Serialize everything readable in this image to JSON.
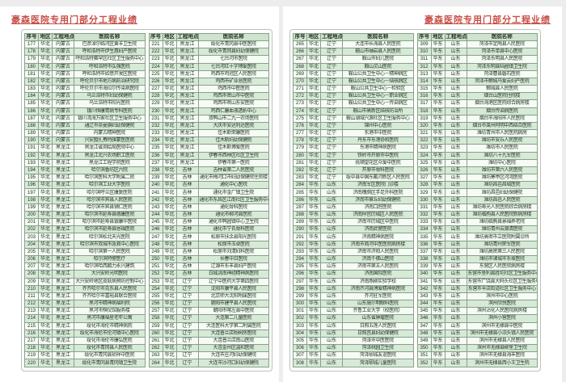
{
  "page_title": "豪森医院专用门部分工程业绩",
  "accent_color": "#c75048",
  "columns": [
    "序号",
    "地区",
    "工程地点",
    "医院名称"
  ],
  "left_page": {
    "table_a": {
      "rows": [
        [
          "177",
          "华北",
          "内蒙古",
          "巴彦淖尔临河区黄羊卫生院"
        ],
        [
          "178",
          "华北",
          "内蒙古",
          "呼和浩特市伊生惠妇产医院"
        ],
        [
          "179",
          "华北",
          "内蒙古",
          "呼和浩特赛罕区社区卫生服务中心"
        ],
        [
          "180",
          "华北",
          "内蒙古",
          "呼和浩特市弘强医院"
        ],
        [
          "181",
          "华北",
          "内蒙古",
          "呼和浩特市如意开发区医院"
        ],
        [
          "182",
          "华北",
          "内蒙古",
          "呼伦贝尔市地方病防治研究院"
        ],
        [
          "183",
          "华北",
          "内蒙古",
          "呼伦贝尔市海拉尔传染病医院"
        ],
        [
          "184",
          "华北",
          "内蒙古",
          "乌兰浩特市妇幼保健院"
        ],
        [
          "185",
          "华北",
          "内蒙古",
          "乌兰浩特市阳光医院"
        ],
        [
          "186",
          "华北",
          "内蒙古",
          "银川恒康胃病专科医院"
        ],
        [
          "187",
          "华北",
          "内蒙古",
          "银川湾海万家社区卫生服务中心"
        ],
        [
          "188",
          "华北",
          "内蒙古",
          "通辽市奈曼旗妇幼保健院"
        ],
        [
          "189",
          "华北",
          "内蒙古",
          "内蒙古精神医院"
        ],
        [
          "190",
          "华北",
          "内蒙古",
          "兴安盟扎赉特旗蒙医医院"
        ],
        [
          "191",
          "华北",
          "黑龙江",
          "黑龙江省测绘局医院中心"
        ],
        [
          "192",
          "华北",
          "黑龙江",
          "黑龙江北兴农场职工医院"
        ],
        [
          "193",
          "华北",
          "黑龙江",
          "黑龙江工程学院医院"
        ],
        [
          "194",
          "华北",
          "黑龙江",
          "哈尔滨香坊区六院"
        ],
        [
          "195",
          "华北",
          "黑龙江",
          "哈尔滨医科大学附属二院"
        ],
        [
          "196",
          "华北",
          "黑龙江",
          "哈尔滨工业大学医院"
        ],
        [
          "197",
          "华北",
          "黑龙江",
          "哈尔滨呼兰区康复医院"
        ],
        [
          "198",
          "华北",
          "黑龙江",
          "哈尔滨市宾县人民医院"
        ],
        [
          "199",
          "华北",
          "黑龙江",
          "哈尔滨市宾县铺仁医院"
        ],
        [
          "200",
          "华北",
          "黑龙江",
          "哈尔滨市延寿县德康医院"
        ],
        [
          "201",
          "华北",
          "黑龙江",
          "哈尔滨市延寿县银康华医院"
        ],
        [
          "202",
          "华北",
          "黑龙江",
          "哈尔滨市延寿县恩福医院"
        ],
        [
          "203",
          "华北",
          "黑龙江",
          "哈尔滨松北天光医院"
        ],
        [
          "204",
          "华北",
          "黑龙江",
          "哈尔滨市双城市急救中心医院"
        ],
        [
          "205",
          "华北",
          "黑龙江",
          "哈尔滨第一人民医院"
        ],
        [
          "206",
          "华北",
          "黑龙江",
          "哈尔滨特警医疗"
        ],
        [
          "207",
          "华北",
          "黑龙江",
          "哈尔滨哈西鹏力永兴建筑"
        ],
        [
          "208",
          "华北",
          "黑龙江",
          "大兴安岭光明医院"
        ],
        [
          "209",
          "华北",
          "黑龙江",
          "大兴安岭地区皮肤病预防控制中心"
        ],
        [
          "210",
          "华北",
          "黑龙江",
          "齐齐哈尔市克东县人民医院"
        ],
        [
          "211",
          "华北",
          "黑龙江",
          "齐齐哈尔市富裕县联合医院"
        ],
        [
          "212",
          "华北",
          "黑龙江",
          "黑河市精神病福利院"
        ],
        [
          "213",
          "华北",
          "黑龙江",
          "黑河市殡仪馆服务楼"
        ],
        [
          "214",
          "华北",
          "黑龙江",
          "黑河市康福星老年公寓"
        ],
        [
          "215",
          "华北",
          "黑龙江",
          "绥化市海伦市精神病院"
        ],
        [
          "216",
          "华北",
          "黑龙江",
          "绥化市海伦市伦河镇中心医院"
        ],
        [
          "217",
          "华北",
          "黑龙江",
          "绥化市海伦市康弘医院"
        ],
        [
          "218",
          "华北",
          "黑龙江",
          "绥化市青冈县人民医院"
        ],
        [
          "219",
          "华北",
          "黑龙江",
          "绥化市青冈县祯祥中医院"
        ],
        [
          "220",
          "华北",
          "黑龙江",
          "绥化市青冈县青冈镇卫生院"
        ]
      ]
    },
    "table_b": {
      "rows": [
        [
          "221",
          "华北",
          "黑龙江",
          "绥化市青冈县中医医院"
        ],
        [
          "222",
          "华北",
          "黑龙江",
          "绥化市青冈县妇幼保健院"
        ],
        [
          "223",
          "华北",
          "黑龙江",
          "七台河市医院"
        ],
        [
          "224",
          "华北",
          "黑龙江",
          "七台河红十字博爱医院"
        ],
        [
          "225",
          "华北",
          "黑龙江",
          "鸡西市鸡冠区人民医院"
        ],
        [
          "226",
          "华北",
          "黑龙江",
          "鸡西市矿业总医院"
        ],
        [
          "227",
          "华北",
          "黑龙江",
          "鸡西市中医医院"
        ],
        [
          "228",
          "华北",
          "黑龙江",
          "鸡西市密山市中医院"
        ],
        [
          "229",
          "华北",
          "黑龙江",
          "鸡西市密山东安医院"
        ],
        [
          "230",
          "华北",
          "黑龙江",
          "鸡西仁康血液透析中心"
        ],
        [
          "231",
          "华北",
          "黑龙江",
          "双鸭山市二九一农场医院"
        ],
        [
          "232",
          "华北",
          "黑龙江",
          "大庆市安达利达医院"
        ],
        [
          "233",
          "华北",
          "黑龙江",
          "佳木斯荣康医院"
        ],
        [
          "234",
          "华北",
          "黑龙江",
          "佳木斯妇幼保健院"
        ],
        [
          "235",
          "华北",
          "黑龙江",
          "佳木斯博爱医院"
        ],
        [
          "236",
          "华北",
          "黑龙江",
          "伊春市西林区社区卫生院"
        ],
        [
          "237",
          "华北",
          "黑龙江",
          "伊春市第一医院"
        ],
        [
          "238",
          "华北",
          "吉林",
          "吉林省第二人民医院"
        ],
        [
          "239",
          "华北",
          "吉林",
          "通化市梅河口市妇幼保健院住院楼"
        ],
        [
          "240",
          "华北",
          "吉林",
          "通化中心医院"
        ],
        [
          "241",
          "华北",
          "吉林",
          "通化市金厂镇卫生院"
        ],
        [
          "242",
          "华北",
          "吉林",
          "通化市东昌区江南社区卫生服务中心"
        ],
        [
          "243",
          "华北",
          "吉林",
          "通化骨科医院"
        ],
        [
          "244",
          "华北",
          "吉林",
          "通化市柳河县医院"
        ],
        [
          "245",
          "华北",
          "吉林",
          "通化市鸭园镇中心卫生院"
        ],
        [
          "246",
          "华北",
          "吉林",
          "通化市宁氏骨科医院"
        ],
        [
          "247",
          "华北",
          "吉林",
          "松原市扶余县阳光医院"
        ],
        [
          "248",
          "华北",
          "吉林",
          "松原市玉卓医院"
        ],
        [
          "249",
          "华北",
          "吉林",
          "松原市刘清妇科医院"
        ],
        [
          "250",
          "华北",
          "吉林",
          "长春中日医院"
        ],
        [
          "251",
          "华北",
          "吉林",
          "辽源市东丰县妇产医院"
        ],
        [
          "252",
          "华北",
          "吉林",
          "白城洮南神经精神病医院"
        ],
        [
          "253",
          "华北",
          "辽宁",
          "辽宁中医药大学第四医院"
        ],
        [
          "254",
          "华北",
          "辽宁",
          "沈阳市康平县人民医院"
        ],
        [
          "255",
          "华北",
          "辽宁",
          "北京师大沈阳附属医院"
        ],
        [
          "256",
          "华北",
          "辽宁",
          "朝阳市建平县人民医院"
        ],
        [
          "257",
          "华北",
          "辽宁",
          "朝阳市喀左县中医院"
        ],
        [
          "258",
          "华北",
          "辽宁",
          "大连第二儿童医院"
        ],
        [
          "259",
          "华北",
          "辽宁",
          "大连医科大学第二附属医院"
        ],
        [
          "260",
          "华北",
          "辽宁",
          "大连普兰店杨树房医院"
        ],
        [
          "261",
          "华北",
          "辽宁",
          "大连普兰店南山医院"
        ],
        [
          "262",
          "华北",
          "辽宁",
          "大连金州区温和医院"
        ],
        [
          "263",
          "华北",
          "辽宁",
          "大连市庄河妇幼保健院"
        ],
        [
          "264",
          "华北",
          "辽宁",
          "大连市沙河口妇幼保健院"
        ]
      ]
    }
  },
  "right_page": {
    "table_c": {
      "rows": [
        [
          "265",
          "华北",
          "辽宁",
          "大连市长海县人民医院"
        ],
        [
          "266",
          "华北",
          "辽宁",
          "鞍山市岫岩县人民医院"
        ],
        [
          "267",
          "华北",
          "辽宁",
          "鞍山市妇儿医院"
        ],
        [
          "268",
          "华北",
          "辽宁",
          "鞍山灵山医院"
        ],
        [
          "269",
          "华北",
          "辽宁",
          "鞍山公共卫生中心－精神病区"
        ],
        [
          "270",
          "华北",
          "辽宁",
          "鞍山公共卫生中心－结核病区"
        ],
        [
          "271",
          "华北",
          "辽宁",
          "鞍山公共卫生中心－检验区"
        ],
        [
          "272",
          "华北",
          "辽宁",
          "鞍山公共卫生中心－职业病区"
        ],
        [
          "273",
          "华北",
          "辽宁",
          "鞍山公共卫生中心－传染病区"
        ],
        [
          "274",
          "华北",
          "辽宁",
          "鞍山市高新区结核防治所"
        ],
        [
          "275",
          "华北",
          "辽宁",
          "鞍山湖城兴源社区卫生服务中心"
        ],
        [
          "276",
          "华北",
          "辽宁",
          "锦州中心医院"
        ],
        [
          "277",
          "华北",
          "辽宁",
          "东港市中医院"
        ],
        [
          "278",
          "华北",
          "辽宁",
          "丹东市东港协和医院"
        ],
        [
          "279",
          "华北",
          "辽宁",
          "东港市精神病医院"
        ],
        [
          "280",
          "华北",
          "辽宁",
          "铁岭市开原市中医院"
        ],
        [
          "281",
          "华北",
          "辽宁",
          "抚顺望花区众爱中医院"
        ],
        [
          "282",
          "华北",
          "辽宁",
          "开原市骨科医院"
        ],
        [
          "283",
          "华北",
          "辽宁",
          "绥中县中国东戴河新区人民医院"
        ],
        [
          "284",
          "华东",
          "山东",
          "济南军区医院门诊楼"
        ],
        [
          "285",
          "华东",
          "山东",
          "济南槐荫区手足外科医院"
        ],
        [
          "286",
          "华东",
          "山东",
          "济南市章丘妇幼保健院"
        ],
        [
          "287",
          "华东",
          "山东",
          "济南口腔医院"
        ],
        [
          "288",
          "华东",
          "山东",
          "济南仲宫历城区人民医院"
        ],
        [
          "289",
          "华东",
          "山东",
          "济南市历城区中医院"
        ],
        [
          "290",
          "华东",
          "山东",
          "济南武警医院"
        ],
        [
          "291",
          "华东",
          "山东",
          "济南精神病医院"
        ],
        [
          "292",
          "华东",
          "山东",
          "济南市商河中医医院病房楼"
        ],
        [
          "293",
          "华东",
          "山东",
          "济南市济阳人民医院"
        ],
        [
          "294",
          "华东",
          "山东",
          "济南千佛山医院"
        ],
        [
          "295",
          "华东",
          "山东",
          "济南市第五人民医院"
        ],
        [
          "296",
          "华东",
          "山东",
          "济南国际医院"
        ],
        [
          "297",
          "华东",
          "山东",
          "济南燕柳实验学校"
        ],
        [
          "298",
          "华东",
          "山东",
          "济南齐河县博爱精神病医院"
        ],
        [
          "299",
          "华东",
          "山东",
          "齐河驻军医院"
        ],
        [
          "300",
          "华东",
          "山东",
          "山东施尔明眼科医院"
        ],
        [
          "301",
          "华东",
          "山东",
          "齐鲁工业大学（校医院）"
        ],
        [
          "302",
          "华东",
          "山东",
          "山东省肿瘤医院"
        ],
        [
          "303",
          "华东",
          "山东",
          "日照五莲人民医院"
        ],
        [
          "304",
          "华东",
          "山东",
          "日照莒县妇幼保健院"
        ],
        [
          "305",
          "华东",
          "山东",
          "菏泽市中医医院"
        ],
        [
          "306",
          "华东",
          "山东",
          "菏泽桃园卫生院"
        ],
        [
          "307",
          "华东",
          "山东",
          "菏泽郓城友谊医院"
        ],
        [
          "308",
          "华东",
          "山东",
          "菏泽郓城儿童医院"
        ]
      ]
    },
    "table_d": {
      "rows": [
        [
          "309",
          "华东",
          "山东",
          "菏泽市定陶县人民医院"
        ],
        [
          "310",
          "华东",
          "山东",
          "菏泽市单县中心医院"
        ],
        [
          "311",
          "华东",
          "山东",
          "菏泽东明县人民医院"
        ],
        [
          "312",
          "华东",
          "山东",
          "菏泽东明县陆圈镇卫生院"
        ],
        [
          "313",
          "华东",
          "山东",
          "菏泽曹县磐石医院"
        ],
        [
          "314",
          "华东",
          "山东",
          "菏泽市鄄城马爱云妇产医院"
        ],
        [
          "315",
          "华东",
          "山东",
          "鄄城县人民医院"
        ],
        [
          "316",
          "华东",
          "山东",
          "烟台山医院住院楼"
        ],
        [
          "317",
          "华东",
          "山东",
          "烟台海港区医院综合病房楼"
        ],
        [
          "318",
          "华东",
          "山东",
          "烟台传染病医院"
        ],
        [
          "319",
          "华东",
          "山东",
          "烟台市海阳市人民医院"
        ],
        [
          "320",
          "华东",
          "山东",
          "烟台市莱州阿明中西结合医院"
        ],
        [
          "321",
          "华东",
          "山东",
          "潍坊青州市人民医院病房"
        ],
        [
          "322",
          "华东",
          "山东",
          "潍坊市安丘人民医院"
        ],
        [
          "323",
          "华东",
          "山东",
          "潍坊市人民医院"
        ],
        [
          "324",
          "华东",
          "山东",
          "潍坊八十九军医院"
        ],
        [
          "325",
          "华东",
          "山东",
          "潍坊中心医院"
        ],
        [
          "326",
          "华东",
          "山东",
          "潍坊市第六人民医院"
        ],
        [
          "327",
          "华东",
          "山东",
          "潍坊寒亭区河湾医院"
        ],
        [
          "328",
          "华东",
          "山东",
          "潍坊昌邑昌城医院"
        ],
        [
          "329",
          "华东",
          "山东",
          "潍坊昌邑妇幼保健院"
        ],
        [
          "330",
          "华东",
          "山东",
          "潍坊昌邑人民医院"
        ],
        [
          "331",
          "华东",
          "山东",
          "潍坊寿光人民医院综合病房楼"
        ],
        [
          "332",
          "华东",
          "山东",
          "潍坊临朐县人民医院新病房楼"
        ],
        [
          "333",
          "华东",
          "山东",
          "潍坊临朐县景福养老院"
        ],
        [
          "334",
          "华东",
          "山东",
          "潍坊青州云源清医院"
        ],
        [
          "335",
          "华东",
          "山东",
          "潍坊高密市立医院附属诊所"
        ],
        [
          "336",
          "华东",
          "山东",
          "潍坊青州荣军医院"
        ],
        [
          "337",
          "华东",
          "山东",
          "潍坊高密第三人民医院"
        ],
        [
          "338",
          "华东",
          "山东",
          "潍坊市诸城市东坡医院"
        ],
        [
          "339",
          "华东",
          "山东",
          "东营区人民医院病房楼"
        ],
        [
          "340",
          "华东",
          "山东",
          "东营市垦利县胜坨社区卫生服务中心"
        ],
        [
          "341",
          "华东",
          "山东",
          "东营市广饶县大码头社区卫生服务中心"
        ],
        [
          "342",
          "华东",
          "山东",
          "东营市辛店街道社区卫生服务中心"
        ],
        [
          "343",
          "华东",
          "山东",
          "滨州市中心医院"
        ],
        [
          "344",
          "华东",
          "山东",
          "滨州欣悦医院"
        ],
        [
          "345",
          "华东",
          "山东",
          "滨州沾化人民医院病房楼"
        ],
        [
          "346",
          "华东",
          "山东",
          "滨州小营医院"
        ],
        [
          "347",
          "华东",
          "山东",
          "滨州市无棣县中医院"
        ],
        [
          "348",
          "华东",
          "山东",
          "滨州市无棣县小泊头镇人民医院"
        ],
        [
          "349",
          "华东",
          "山东",
          "滨州市无棣县人民医院"
        ],
        [
          "350",
          "华东",
          "山东",
          "滨州市无棣县柳堡卫生院"
        ],
        [
          "351",
          "华东",
          "山东",
          "滨州市无棣县海丰医院"
        ],
        [
          "352",
          "华东",
          "山东",
          "滨州市无棣县西小王卫生院"
        ]
      ]
    }
  }
}
